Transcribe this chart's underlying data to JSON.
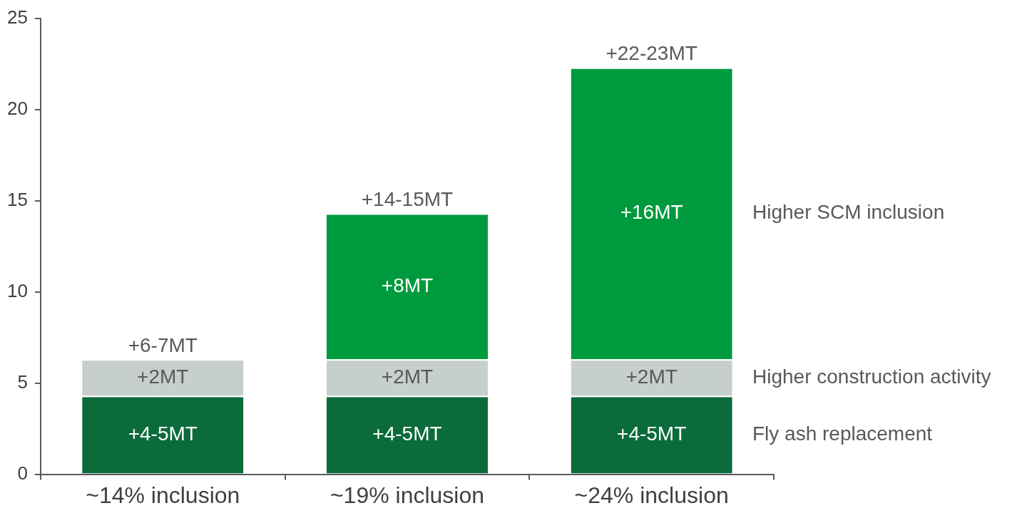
{
  "chart_data": {
    "type": "bar",
    "stacked": true,
    "categories": [
      "~14% inclusion",
      "~19% inclusion",
      "~24% inclusion"
    ],
    "series": [
      {
        "name": "Fly ash replacement",
        "color": "#0b6b3a",
        "values": [
          4.3,
          4.3,
          4.3
        ],
        "value_labels": [
          "+4-5MT",
          "+4-5MT",
          "+4-5MT"
        ]
      },
      {
        "name": "Higher construction activity",
        "color": "#c6cfcb",
        "values": [
          2,
          2,
          2
        ],
        "value_labels": [
          "+2MT",
          "+2MT",
          "+2MT"
        ]
      },
      {
        "name": "Higher SCM inclusion",
        "color": "#009a3e",
        "values": [
          null,
          8,
          16
        ],
        "value_labels": [
          null,
          "+8MT",
          "+16MT"
        ]
      }
    ],
    "totals": [
      "+6-7MT",
      "+14-15MT",
      "+22-23MT"
    ],
    "ylim": [
      0,
      25
    ],
    "yticks": [
      0,
      5,
      10,
      15,
      20,
      25
    ],
    "grid": false,
    "legend": false
  }
}
